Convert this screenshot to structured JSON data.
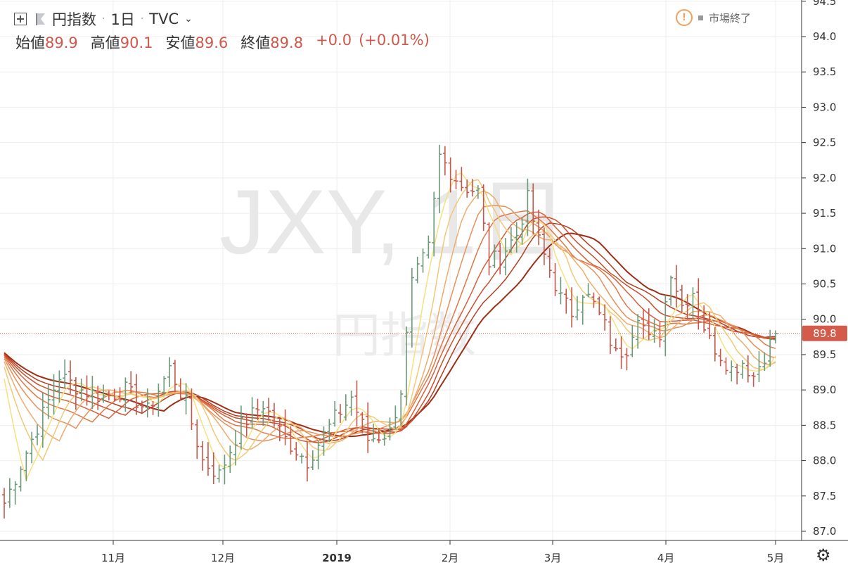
{
  "header": {
    "symbol_name": "円指数",
    "interval": "1日",
    "exchange": "TVC",
    "ohlc": [
      {
        "label": "始値",
        "value": "89.9"
      },
      {
        "label": "高値",
        "value": "90.1"
      },
      {
        "label": "安値",
        "value": "89.6"
      },
      {
        "label": "終値",
        "value": "89.8"
      }
    ],
    "change": "+0.0",
    "change_pct": "(+0.01%)",
    "market_status": "市場終了"
  },
  "watermark": {
    "line1": "JXY, 1日",
    "line2": "円指数"
  },
  "icons": {
    "add": "plus-box-icon",
    "flag": "flag-icon",
    "warning": "warning-icon",
    "settings": "gear-icon"
  },
  "colors": {
    "up": "#6a9a78",
    "down": "#c8564a",
    "last_price_bg": "#d45a4a",
    "ribbon": [
      "#9e2e16",
      "#b43e22",
      "#c8502e",
      "#d6603a",
      "#e07846",
      "#e8905a",
      "#eeac6c",
      "#f2c878",
      "#f6e080"
    ]
  },
  "chart_data": {
    "type": "ohlc-bar",
    "title": "",
    "y_axis": {
      "position": "right",
      "ylim": [
        86.9,
        94.5
      ],
      "ticks": [
        "87.0",
        "87.5",
        "88.0",
        "88.5",
        "89.0",
        "89.5",
        "90.0",
        "90.5",
        "91.0",
        "91.5",
        "92.0",
        "92.5",
        "93.0",
        "93.5",
        "94.0",
        "94.5"
      ]
    },
    "x_axis": {
      "ticks": [
        {
          "label": "11月",
          "date": "2018-11-01"
        },
        {
          "label": "12月",
          "date": "2018-12-01"
        },
        {
          "label": "2019",
          "date": "2019-01-01"
        },
        {
          "label": "2月",
          "date": "2019-02-01"
        },
        {
          "label": "3月",
          "date": "2019-03-01"
        },
        {
          "label": "4月",
          "date": "2019-04-01"
        },
        {
          "label": "5月",
          "date": "2019-05-01"
        }
      ]
    },
    "last_price": "89.8",
    "last_price_value": 89.8,
    "close_anchors": [
      [
        0,
        87.4
      ],
      [
        5,
        88.3
      ],
      [
        10,
        89.2
      ],
      [
        14,
        89.0
      ],
      [
        18,
        88.9
      ],
      [
        22,
        89.0
      ],
      [
        26,
        88.7
      ],
      [
        30,
        89.3
      ],
      [
        33,
        88.8
      ],
      [
        36,
        88.0
      ],
      [
        39,
        87.8
      ],
      [
        43,
        88.5
      ],
      [
        47,
        88.8
      ],
      [
        51,
        88.3
      ],
      [
        55,
        88.0
      ],
      [
        60,
        88.6
      ],
      [
        63,
        88.9
      ],
      [
        66,
        88.3
      ],
      [
        70,
        88.4
      ],
      [
        72,
        89.0
      ],
      [
        74,
        90.5
      ],
      [
        77,
        91.0
      ],
      [
        79,
        92.3
      ],
      [
        81,
        92.1
      ],
      [
        83,
        91.9
      ],
      [
        86,
        91.8
      ],
      [
        88,
        90.8
      ],
      [
        90,
        90.9
      ],
      [
        93,
        91.2
      ],
      [
        95,
        91.7
      ],
      [
        97,
        91.1
      ],
      [
        99,
        90.7
      ],
      [
        101,
        90.3
      ],
      [
        103,
        90.1
      ],
      [
        105,
        90.4
      ],
      [
        107,
        90.2
      ],
      [
        109,
        89.9
      ],
      [
        111,
        89.5
      ],
      [
        113,
        89.6
      ],
      [
        115,
        90.1
      ],
      [
        117,
        89.7
      ],
      [
        119,
        89.8
      ],
      [
        121,
        90.7
      ],
      [
        123,
        90.2
      ],
      [
        125,
        90.4
      ],
      [
        126,
        90.1
      ],
      [
        128,
        89.7
      ],
      [
        130,
        89.5
      ],
      [
        132,
        89.3
      ],
      [
        134,
        89.4
      ],
      [
        136,
        89.2
      ],
      [
        138,
        89.5
      ],
      [
        140,
        89.8
      ]
    ],
    "ribbon_sma_lengths": [
      5,
      8,
      11,
      14,
      17,
      20,
      23,
      26,
      30
    ]
  }
}
